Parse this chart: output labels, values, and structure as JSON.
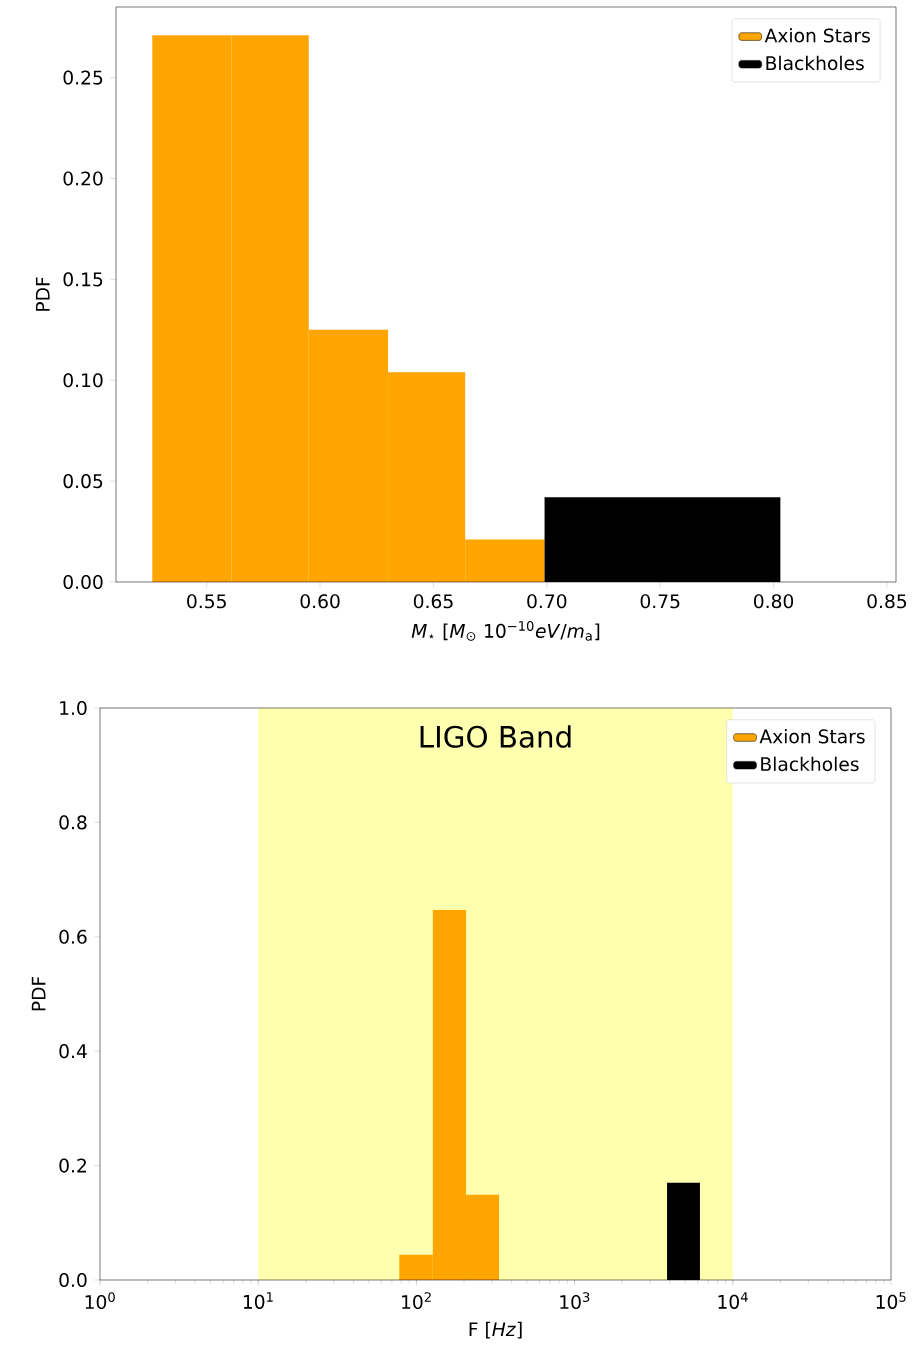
{
  "chart_data": [
    {
      "type": "histogram",
      "xlabel": "*M*$_{⋆}$ [*M*$_{⊙}$ 10$^{−10}$*eV*/*m*$_{a}$]",
      "ylabel": "PDF",
      "xlim": [
        0.51,
        0.854
      ],
      "ylim": [
        0,
        0.285
      ],
      "xticks": [
        {
          "value": 0.55,
          "label": "0.55"
        },
        {
          "value": 0.6,
          "label": "0.60"
        },
        {
          "value": 0.65,
          "label": "0.65"
        },
        {
          "value": 0.7,
          "label": "0.70"
        },
        {
          "value": 0.75,
          "label": "0.75"
        },
        {
          "value": 0.8,
          "label": "0.80"
        },
        {
          "value": 0.85,
          "label": "0.85"
        }
      ],
      "yticks": [
        {
          "value": 0,
          "label": "0.00"
        },
        {
          "value": 0.05,
          "label": "0.05"
        },
        {
          "value": 0.1,
          "label": "0.10"
        },
        {
          "value": 0.15,
          "label": "0.15"
        },
        {
          "value": 0.2,
          "label": "0.20"
        },
        {
          "value": 0.25,
          "label": "0.25"
        }
      ],
      "legend": "top right",
      "bins": [
        0.526,
        0.561,
        0.595,
        0.63,
        0.664,
        0.699,
        0.803
      ],
      "series": [
        {
          "name": "Axion Stars",
          "color": "#ffa500",
          "values": [
            0.271,
            0.271,
            0.125,
            0.104,
            0.021,
            null
          ]
        },
        {
          "name": "Blackholes",
          "color": "#000000",
          "values": [
            null,
            null,
            null,
            null,
            null,
            0.042
          ]
        }
      ]
    },
    {
      "type": "histogram",
      "xlabel": "F [*Hz*]",
      "ylabel": "PDF",
      "log": "x",
      "xlim": [
        1,
        100000
      ],
      "ylim": [
        0,
        1.0
      ],
      "xticks": [
        {
          "value": 1,
          "label": "10$^{0}$"
        },
        {
          "value": 10,
          "label": "10$^{1}$"
        },
        {
          "value": 100,
          "label": "10$^{2}$"
        },
        {
          "value": 1000,
          "label": "10$^{3}$"
        },
        {
          "value": 10000,
          "label": "10$^{4}$"
        },
        {
          "value": 100000,
          "label": "10$^{5}$"
        }
      ],
      "yticks": [
        {
          "value": 0,
          "label": "0.0"
        },
        {
          "value": 0.2,
          "label": "0.2"
        },
        {
          "value": 0.4,
          "label": "0.4"
        },
        {
          "value": 0.6,
          "label": "0.6"
        },
        {
          "value": 0.8,
          "label": "0.8"
        },
        {
          "value": 1.0,
          "label": "1.0"
        }
      ],
      "legend": "top right",
      "bands": [
        {
          "axis": "x",
          "from": 10,
          "to": 10000,
          "label": "LIGO Band",
          "color": "#ffffb0"
        }
      ],
      "bins": [
        78,
        127,
        206,
        333,
        3840,
        6200
      ],
      "series": [
        {
          "name": "Axion Stars",
          "color": "#ffa500",
          "values": [
            0.044,
            0.647,
            0.149,
            null,
            null
          ]
        },
        {
          "name": "Blackholes",
          "color": "#000000",
          "values": [
            null,
            null,
            null,
            null,
            0.17
          ]
        }
      ]
    }
  ]
}
